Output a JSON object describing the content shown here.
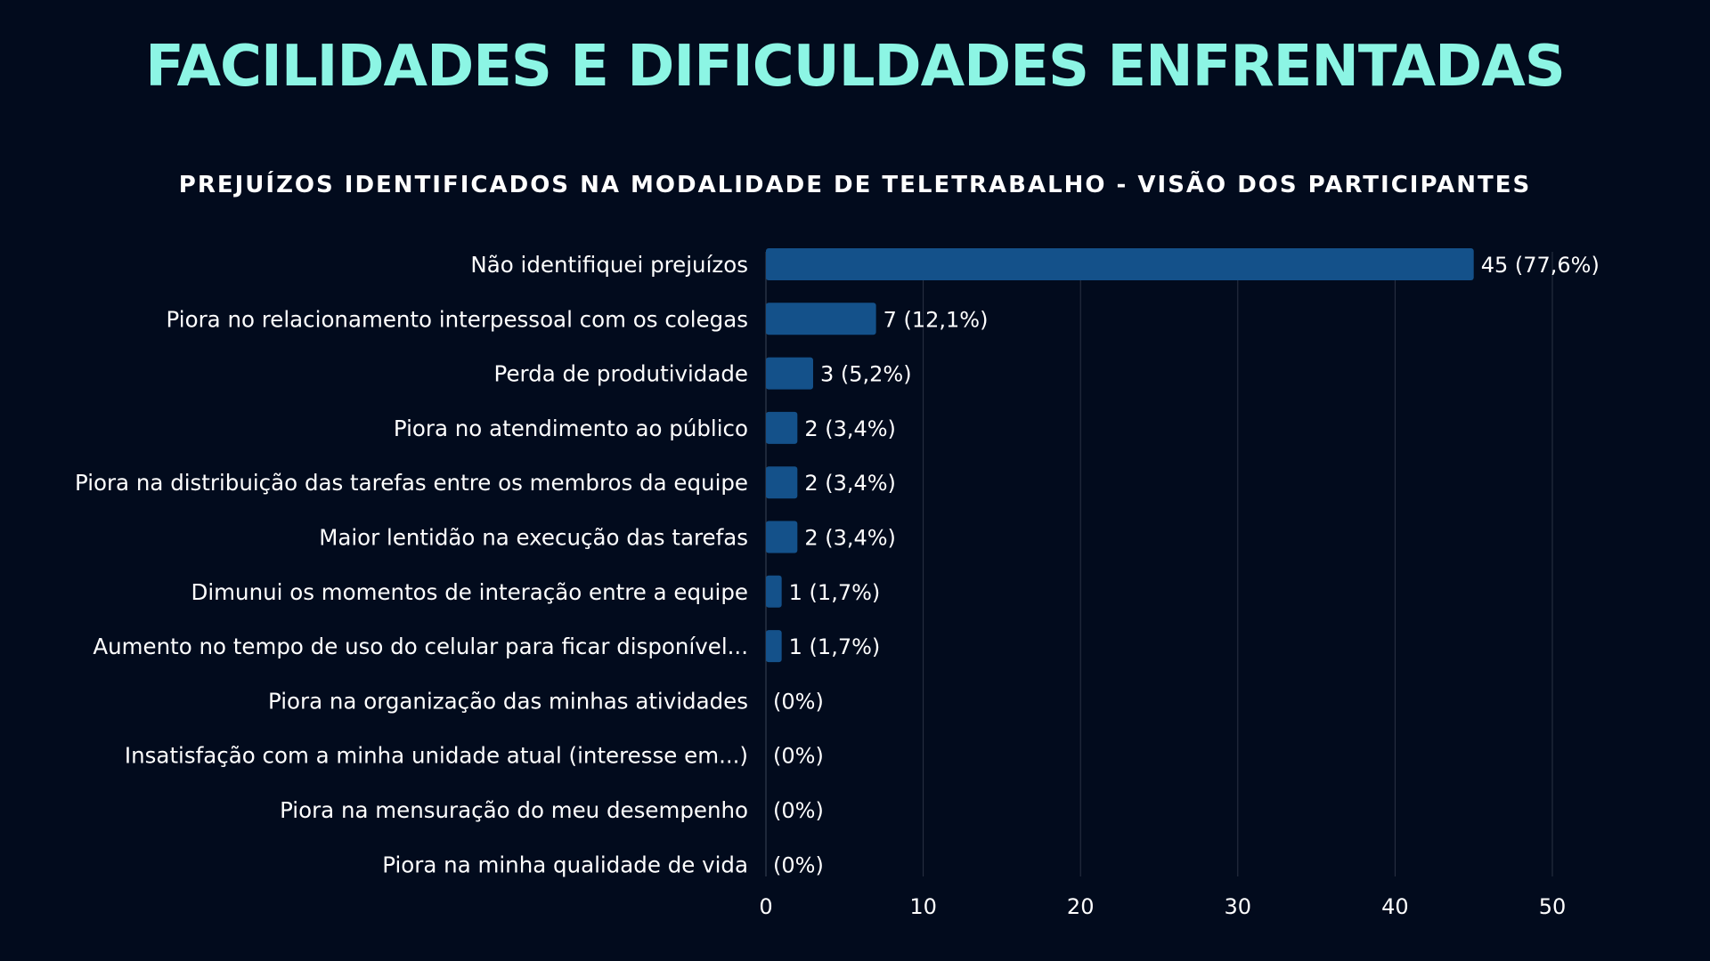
{
  "title": "FACILIDADES E DIFICULDADES ENFRENTADAS",
  "colors": {
    "background": "#020b1d",
    "title": "#8cf5e4",
    "bar": "#14518a",
    "text": "#ffffff",
    "grid": "#2a3344"
  },
  "chart_data": {
    "type": "bar",
    "orientation": "horizontal",
    "title": "PREJUÍZOS IDENTIFICADOS NA MODALIDADE DE TELETRABALHO - VISÃO DOS PARTICIPANTES",
    "xlabel": "",
    "ylabel": "",
    "xlim": [
      0,
      50
    ],
    "xticks": [
      0,
      10,
      20,
      30,
      40,
      50
    ],
    "grid": true,
    "categories": [
      "Não identifiquei prejuízos",
      "Piora no relacionamento interpessoal com os colegas",
      "Perda de produtividade",
      "Piora no atendimento ao público",
      "Piora na distribuição das tarefas entre os membros da equipe",
      "Maior lentidão na execução das tarefas",
      "Dimunui os momentos de interação entre a equipe",
      "Aumento no tempo de uso do celular para ficar disponível...",
      "Piora na organização das minhas atividades",
      "Insatisfação com a minha unidade atual (interesse em...)",
      "Piora na mensuração do meu desempenho",
      "Piora na minha qualidade de vida"
    ],
    "values": [
      45,
      7,
      3,
      2,
      2,
      2,
      1,
      1,
      0,
      0,
      0,
      0
    ],
    "data_labels": [
      "45 (77,6%)",
      "7 (12,1%)",
      "3 (5,2%)",
      "2 (3,4%)",
      "2 (3,4%)",
      "2 (3,4%)",
      "1 (1,7%)",
      "1 (1,7%)",
      "(0%)",
      "(0%)",
      "(0%)",
      "(0%)"
    ]
  }
}
